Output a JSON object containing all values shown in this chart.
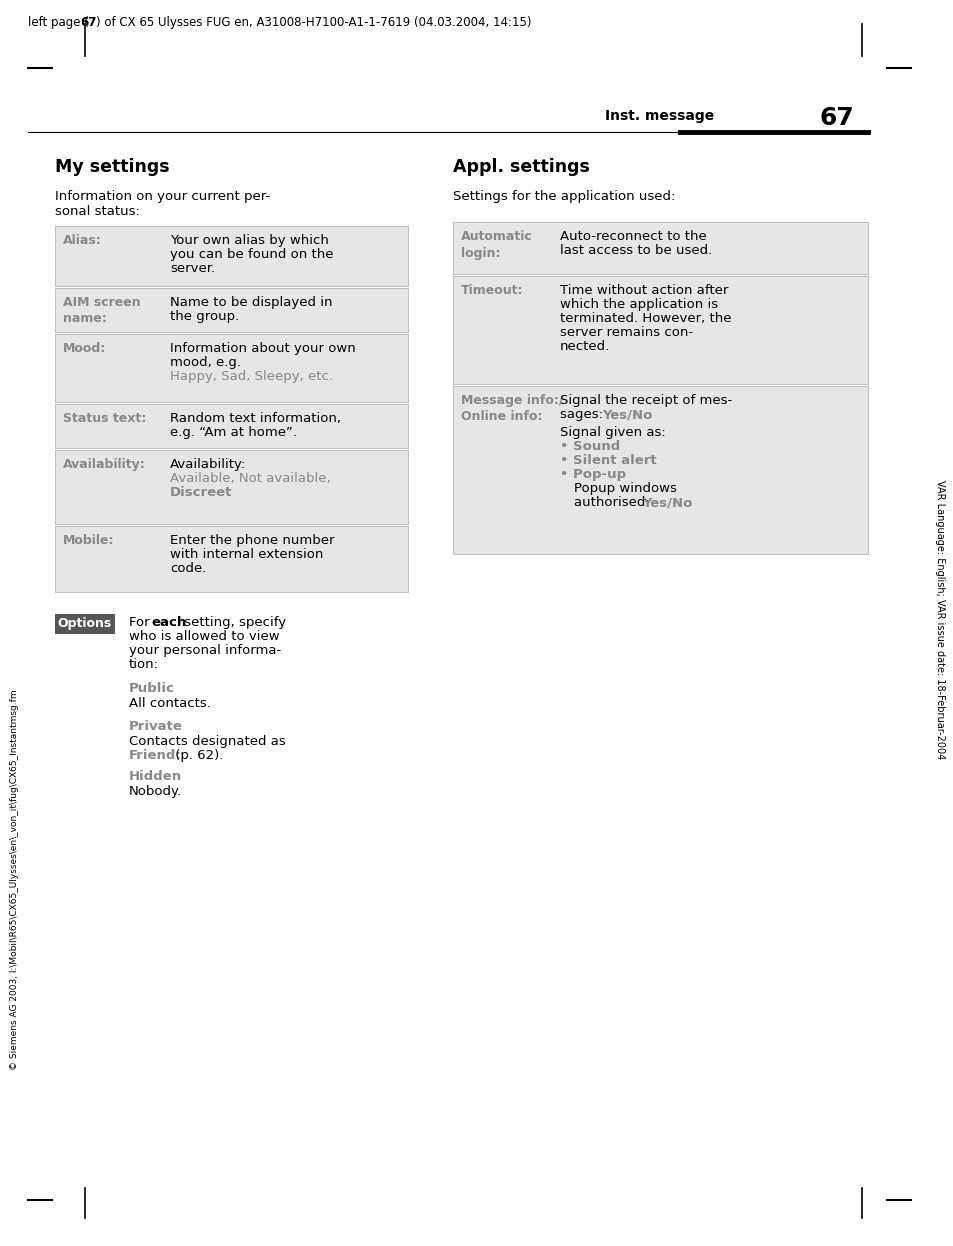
{
  "header_text_normal": "left page (",
  "header_text_bold": "67",
  "header_text_end": ") of CX 65 Ulysses FUG en, A31008-H7100-A1-1-7619 (04.03.2004, 14:15)",
  "right_side_text": "VAR Language: English; VAR issue date: 18-Februar-2004",
  "page_label": "Inst. message",
  "page_number": "67",
  "section_left_title": "My settings",
  "section_left_intro": "Information on your current per-\nsonal status:",
  "section_right_title": "Appl. settings",
  "section_right_intro": "Settings for the application used:",
  "left_table_rows": [
    {
      "label": "Alias:",
      "lines": [
        {
          "text": "Your own alias by which",
          "bold": false,
          "colored": false
        },
        {
          "text": "you can be found on the",
          "bold": false,
          "colored": false
        },
        {
          "text": "server.",
          "bold": false,
          "colored": false
        }
      ]
    },
    {
      "label": "AIM screen\nname:",
      "lines": [
        {
          "text": "Name to be displayed in",
          "bold": false,
          "colored": false
        },
        {
          "text": "the group.",
          "bold": false,
          "colored": false
        }
      ]
    },
    {
      "label": "Mood:",
      "lines": [
        {
          "text": "Information about your own",
          "bold": false,
          "colored": false
        },
        {
          "text": "mood, e.g.",
          "bold": false,
          "colored": false
        },
        {
          "text": "Happy, Sad, Sleepy, etc.",
          "bold": false,
          "colored": true
        }
      ]
    },
    {
      "label": "Status text:",
      "lines": [
        {
          "text": "Random text information,",
          "bold": false,
          "colored": false
        },
        {
          "text": "e.g. “Am at home”.",
          "bold": false,
          "colored": false
        }
      ]
    },
    {
      "label": "Availability:",
      "lines": [
        {
          "text": "Availability:",
          "bold": false,
          "colored": false
        },
        {
          "text": "Available, Not available,",
          "bold": false,
          "colored": true
        },
        {
          "text": "Discreet",
          "bold": true,
          "colored": true
        }
      ]
    },
    {
      "label": "Mobile:",
      "lines": [
        {
          "text": "Enter the phone number",
          "bold": false,
          "colored": false
        },
        {
          "text": "with internal extension",
          "bold": false,
          "colored": false
        },
        {
          "text": "code.",
          "bold": false,
          "colored": false
        }
      ]
    }
  ],
  "right_table_rows": [
    {
      "label": "Automatic\nlogin:",
      "lines": [
        {
          "text": "Auto-reconnect to the",
          "bold": false,
          "colored": false
        },
        {
          "text": "last access to be used.",
          "bold": false,
          "colored": false
        }
      ]
    },
    {
      "label": "Timeout:",
      "lines": [
        {
          "text": "Time without action after",
          "bold": false,
          "colored": false
        },
        {
          "text": "which the application is",
          "bold": false,
          "colored": false
        },
        {
          "text": "terminated. However, the",
          "bold": false,
          "colored": false
        },
        {
          "text": "server remains con-",
          "bold": false,
          "colored": false
        },
        {
          "text": "nected.",
          "bold": false,
          "colored": false
        }
      ]
    },
    {
      "label": "Message info:/\nOnline info:",
      "content_parts": [
        {
          "text": "Signal the receipt of mes-",
          "bold": false,
          "colored": false
        },
        {
          "text": "sages: ",
          "bold": false,
          "colored": false,
          "inline_bold": "Yes/No",
          "inline_colored": true
        },
        {
          "text": "Signal given as:",
          "bold": false,
          "colored": false
        },
        {
          "text": "• Sound",
          "bold": true,
          "colored": true
        },
        {
          "text": "• Silent alert",
          "bold": true,
          "colored": true
        },
        {
          "text": "• Pop-up",
          "bold": true,
          "colored": true
        },
        {
          "text": "  Popup windows",
          "bold": false,
          "colored": false
        },
        {
          "text": "  authorised: ",
          "bold": false,
          "colored": false,
          "inline_bold": "Yes/No",
          "inline_colored": true
        }
      ]
    }
  ],
  "options_box_text": "Options",
  "public_label": "Public",
  "public_text": "All contacts.",
  "private_label": "Private",
  "private_line1": "Contacts designated as",
  "private_line2": "Friend:",
  "private_line2b": " (p. 62).",
  "hidden_label": "Hidden",
  "hidden_text": "Nobody.",
  "left_margin_text": "© Siemens AG 2003, I:\\Mobil\\R65\\CX65_Ulysses\\en\\_von_it\\fug\\CX65_Instantmsg.fm",
  "bg_color": "#ffffff",
  "table_bg": "#e6e6e6",
  "table_border": "#aaaaaa",
  "label_color": "#888888",
  "gray_text_color": "#888888",
  "header_font_size": 8.5,
  "title_font_size": 12.5,
  "body_font_size": 9.5,
  "label_font_size": 9.0
}
